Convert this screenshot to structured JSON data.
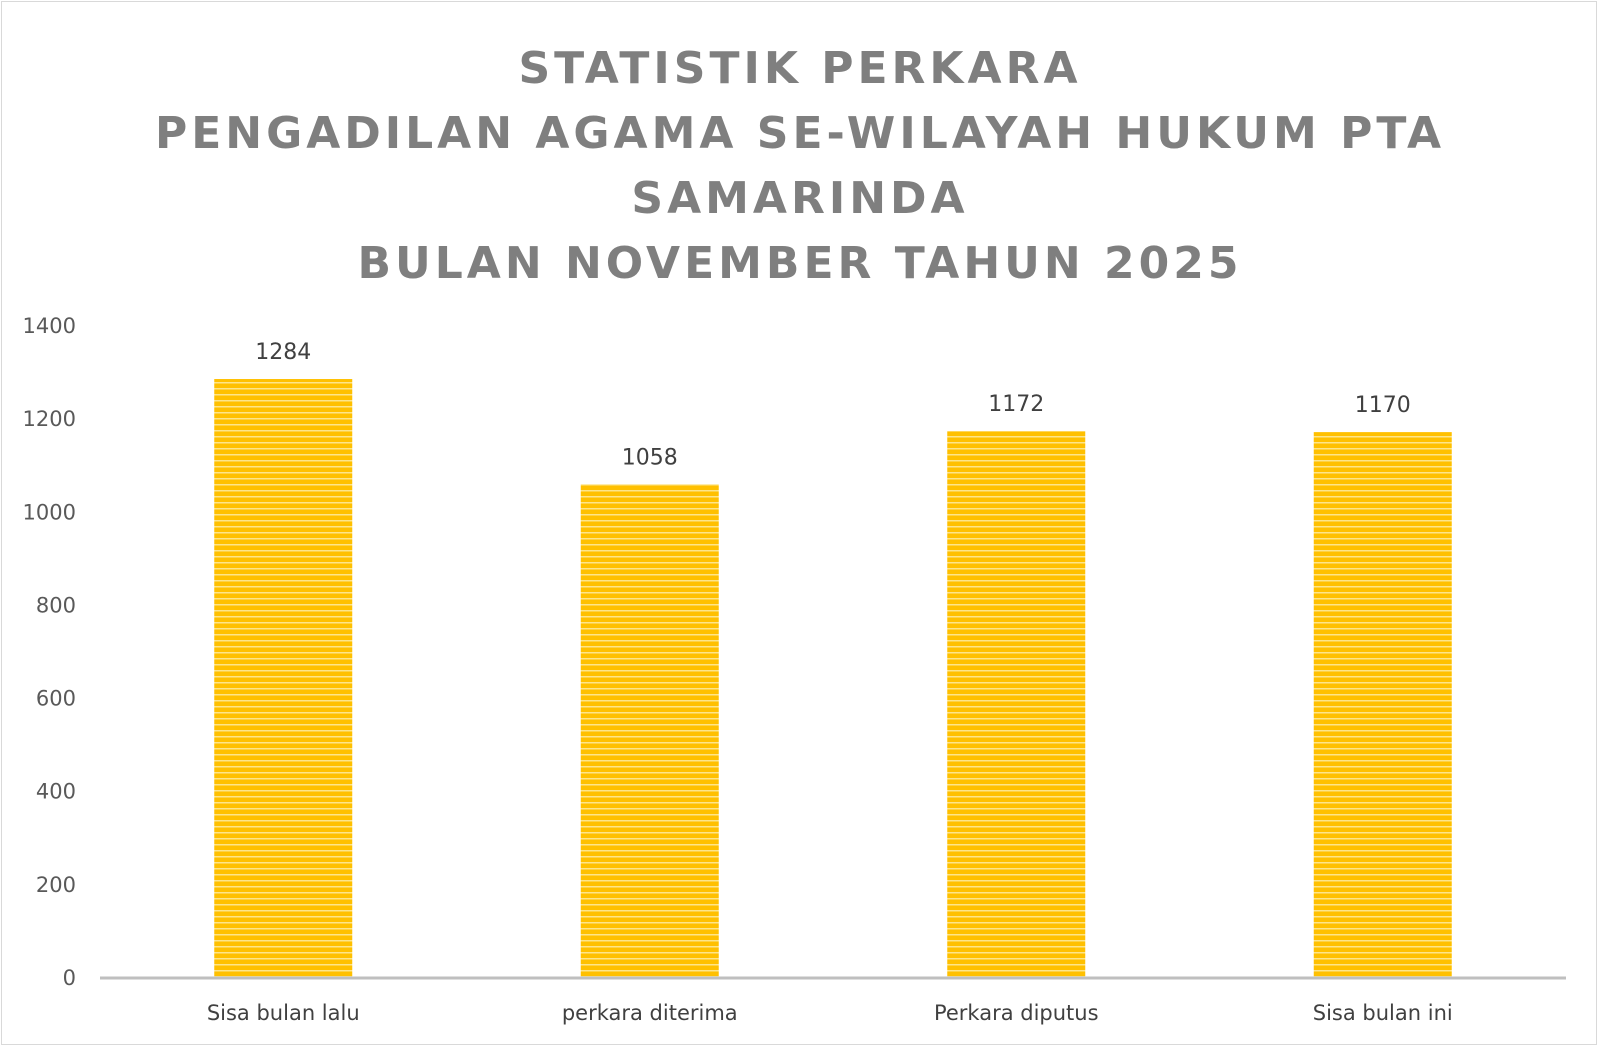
{
  "chart_data": {
    "type": "bar",
    "title": [
      "STATISTIK PERKARA",
      "PENGADILAN AGAMA SE-WILAYAH HUKUM PTA",
      "SAMARINDA",
      "BULAN NOVEMBER TAHUN 2025"
    ],
    "categories": [
      "Sisa bulan lalu",
      "perkara diterima",
      "Perkara diputus",
      "Sisa bulan ini"
    ],
    "values": [
      1284,
      1058,
      1172,
      1170
    ],
    "data_labels": [
      "1284",
      "1058",
      "1172",
      "1170"
    ],
    "y_ticks": [
      "0",
      "200",
      "400",
      "600",
      "800",
      "1000",
      "1200",
      "1400"
    ],
    "ylim": [
      0,
      1400
    ],
    "xlabel": "",
    "ylabel": "",
    "grid": false,
    "legend": "none",
    "bar_color": "#ffc000",
    "bar_stripe_color": "#fde58a",
    "axis_color": "#bfbfbf",
    "title_color": "#7f7f7f"
  }
}
